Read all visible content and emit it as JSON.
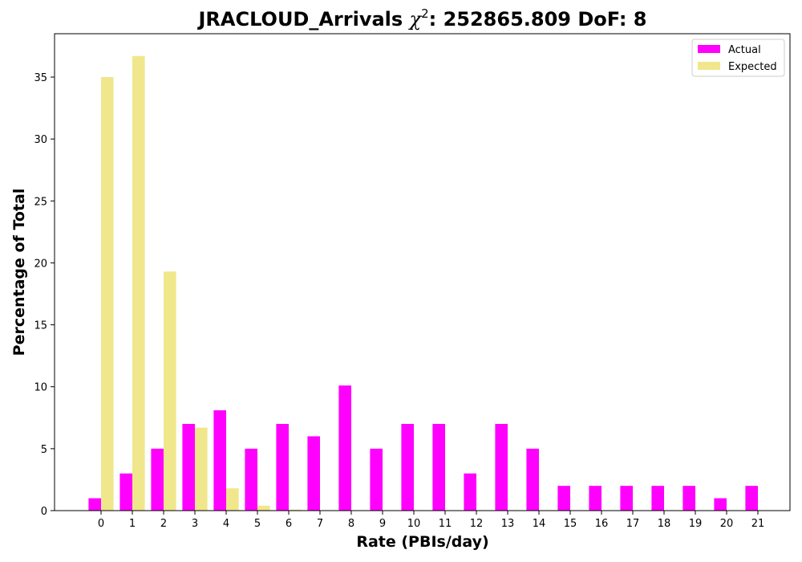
{
  "chart_data": {
    "type": "bar",
    "title_main": "JRACLOUD_Arrivals ",
    "title_chi": "χ",
    "title_sup": "2",
    "title_rest": ": 252865.809 DoF: 8",
    "xlabel": "Rate (PBIs/day)",
    "ylabel": "Percentage of Total",
    "ylim": [
      0,
      38.5
    ],
    "yticks": [
      0,
      5,
      10,
      15,
      20,
      25,
      30,
      35
    ],
    "categories": [
      "0",
      "1",
      "2",
      "3",
      "4",
      "5",
      "6",
      "7",
      "8",
      "9",
      "10",
      "11",
      "12",
      "13",
      "14",
      "15",
      "16",
      "17",
      "18",
      "19",
      "20",
      "21"
    ],
    "series": [
      {
        "name": "Actual",
        "color": "#ff00ff",
        "values": [
          1,
          3,
          5,
          7,
          8.1,
          5,
          7,
          6,
          10.1,
          5,
          7,
          7,
          3,
          7,
          5,
          2,
          2,
          2,
          2,
          2,
          1,
          2
        ]
      },
      {
        "name": "Expected",
        "color": "#f0e68c",
        "values": [
          35,
          36.7,
          19.3,
          6.7,
          1.8,
          0.4,
          0.08,
          0,
          0,
          0,
          0,
          0,
          0,
          0,
          0,
          0,
          0,
          0,
          0,
          0,
          0,
          0
        ]
      }
    ],
    "legend_position": "top-right",
    "grid": false
  }
}
